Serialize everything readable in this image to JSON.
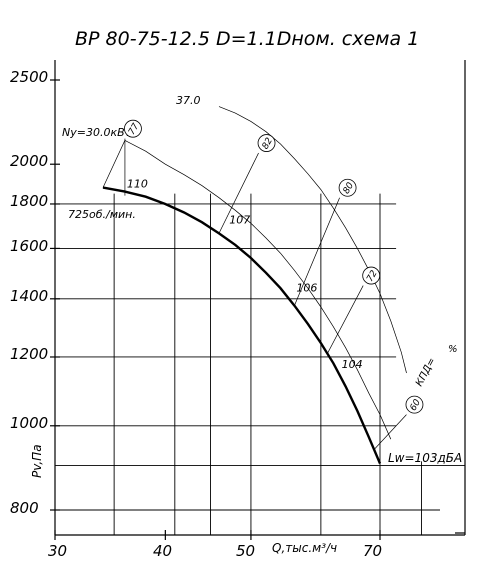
{
  "chart_data": {
    "type": "line",
    "title": "ВР 80-75-12.5  D=1.1Dном.  схема 1",
    "xlabel": "Q,тыс.м³/ч",
    "ylabel": "Pv,Па",
    "x_scale": "log",
    "y_scale": "log",
    "xlim": [
      30,
      85
    ],
    "ylim": [
      700,
      2800
    ],
    "x_ticks": [
      "30",
      "40",
      "50",
      "70"
    ],
    "y_ticks": [
      "2500",
      "2000",
      "1800",
      "1600",
      "1400",
      "1200",
      "1000",
      "800"
    ],
    "speed_label": "725об./мин.",
    "power_label": "Nу=30.0кВт",
    "noise_label": "Lw=103дБА",
    "efficiency_label": "КПД=",
    "efficiency_unit": "%",
    "series": [
      {
        "x": [
          34,
          36,
          38,
          40,
          42,
          44,
          46,
          48,
          50,
          52,
          54,
          56,
          58,
          60,
          62,
          64,
          66,
          68,
          70
        ],
        "values": [
          1880,
          1860,
          1835,
          1800,
          1760,
          1715,
          1665,
          1615,
          1560,
          1500,
          1440,
          1375,
          1310,
          1245,
          1180,
          1110,
          1040,
          970,
          905
        ]
      }
    ],
    "power_curve": {
      "x": [
        34,
        36,
        38,
        40,
        42,
        44,
        46,
        48,
        50,
        52,
        54,
        56,
        58,
        60,
        62,
        64,
        66,
        68,
        70,
        72
      ],
      "values": [
        1880,
        2130,
        2070,
        2000,
        1945,
        1890,
        1830,
        1770,
        1710,
        1645,
        1580,
        1510,
        1440,
        1370,
        1300,
        1230,
        1160,
        1090,
        1030,
        965
      ]
    },
    "upper_curve": {
      "label": "37.0",
      "x": [
        46,
        48,
        50,
        52,
        54,
        56,
        58,
        60,
        62,
        64,
        66,
        68,
        70,
        72,
        74,
        75
      ],
      "values": [
        2330,
        2290,
        2240,
        2180,
        2110,
        2030,
        1950,
        1870,
        1780,
        1690,
        1600,
        1510,
        1420,
        1320,
        1215,
        1150
      ]
    },
    "efficiency_lines": [
      {
        "label": "77",
        "from": [
          36,
          1840
        ],
        "to": [
          36,
          2140
        ]
      },
      {
        "label": "82",
        "from": [
          46,
          1665
        ],
        "to": [
          51,
          2060
        ]
      },
      {
        "label": "80",
        "from": [
          56,
          1375
        ],
        "to": [
          63,
          1830
        ]
      },
      {
        "label": "72",
        "from": [
          61,
          1210
        ],
        "to": [
          67,
          1450
        ]
      },
      {
        "label": "60",
        "from": [
          69,
          940
        ],
        "to": [
          75,
          1030
        ]
      }
    ],
    "noise_points": [
      {
        "label": "110",
        "x": 36,
        "y": 1870
      },
      {
        "label": "107",
        "x": 47,
        "y": 1700
      },
      {
        "label": "106",
        "x": 56,
        "y": 1420
      },
      {
        "label": "104",
        "x": 63,
        "y": 1160
      }
    ]
  }
}
